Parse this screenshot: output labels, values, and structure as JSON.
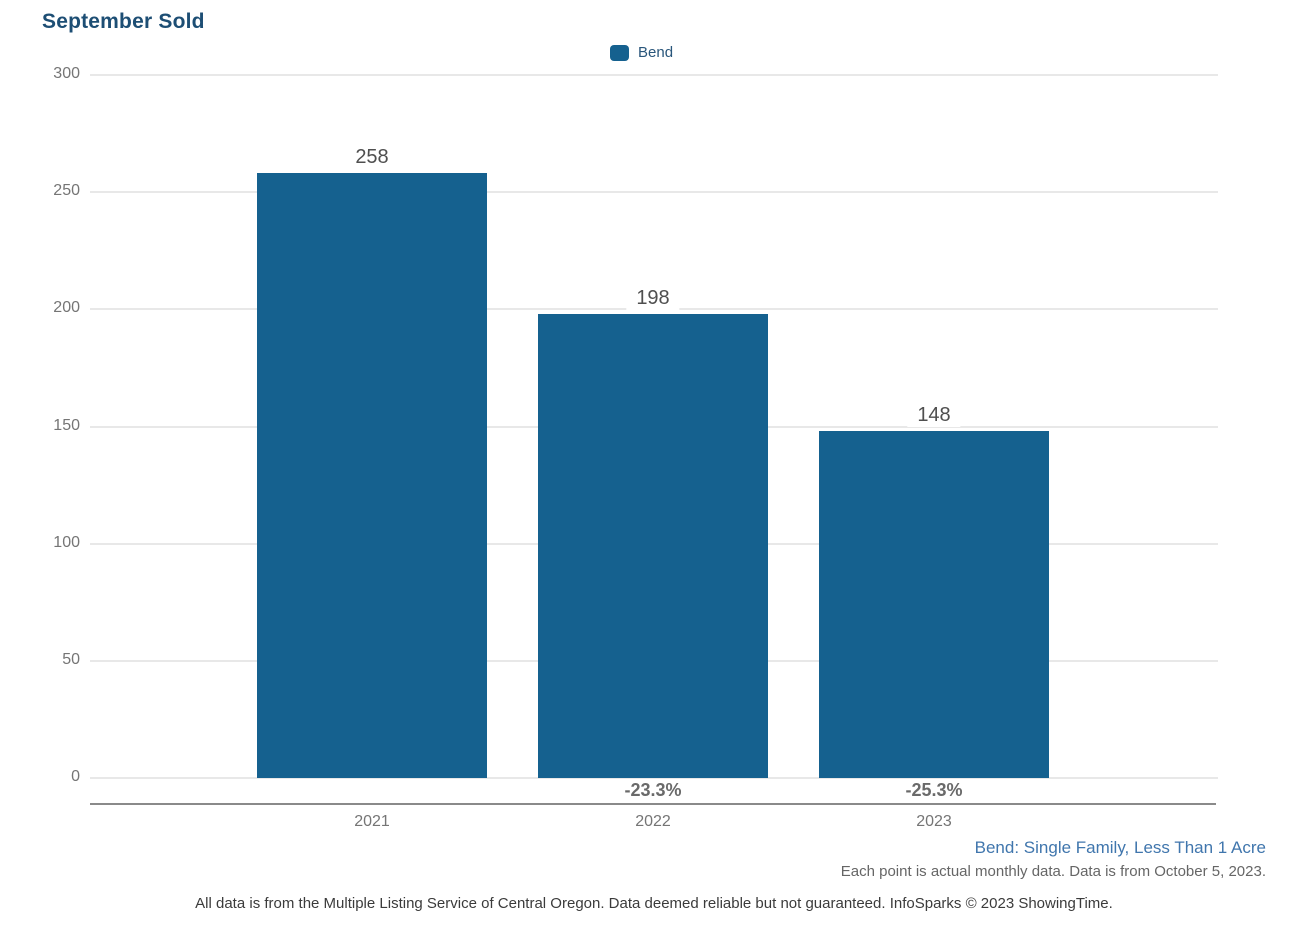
{
  "header": {
    "title": "September Sold"
  },
  "legend": {
    "items": [
      {
        "label": "Bend",
        "color": "#15618f"
      }
    ]
  },
  "chart_data": {
    "type": "bar",
    "title": "September Sold",
    "categories": [
      "2021",
      "2022",
      "2023"
    ],
    "series": [
      {
        "name": "Bend",
        "values": [
          258,
          198,
          148
        ],
        "color": "#15618f"
      }
    ],
    "pct_change_labels": [
      null,
      "-23.3%",
      "-25.3%"
    ],
    "ylim": [
      0,
      300
    ],
    "yticks": [
      0,
      50,
      100,
      150,
      200,
      250,
      300
    ],
    "xlabel": "",
    "ylabel": "",
    "grid": true,
    "legend_position": "top-center",
    "value_labels_shown": true
  },
  "footnotes": {
    "series_description": "Bend: Single Family, Less Than 1 Acre",
    "data_note": "Each point is actual monthly data. Data is from October 5, 2023.",
    "disclaimer": "All data is from the Multiple Listing Service of Central Oregon. Data deemed reliable but not guaranteed. InfoSparks © 2023 ShowingTime."
  },
  "colors": {
    "bar": "#15618f",
    "title": "#1d4e74",
    "legend_label": "#29567b",
    "gridline": "#e8e8e8",
    "axis_text": "#757575",
    "value_label": "#4f4f4f",
    "pct_label": "#6a6a6a",
    "axis_line": "#8a8a8a",
    "series_note": "#4076ad",
    "data_note": "#666666",
    "disclaimer": "#3b3b3b"
  }
}
